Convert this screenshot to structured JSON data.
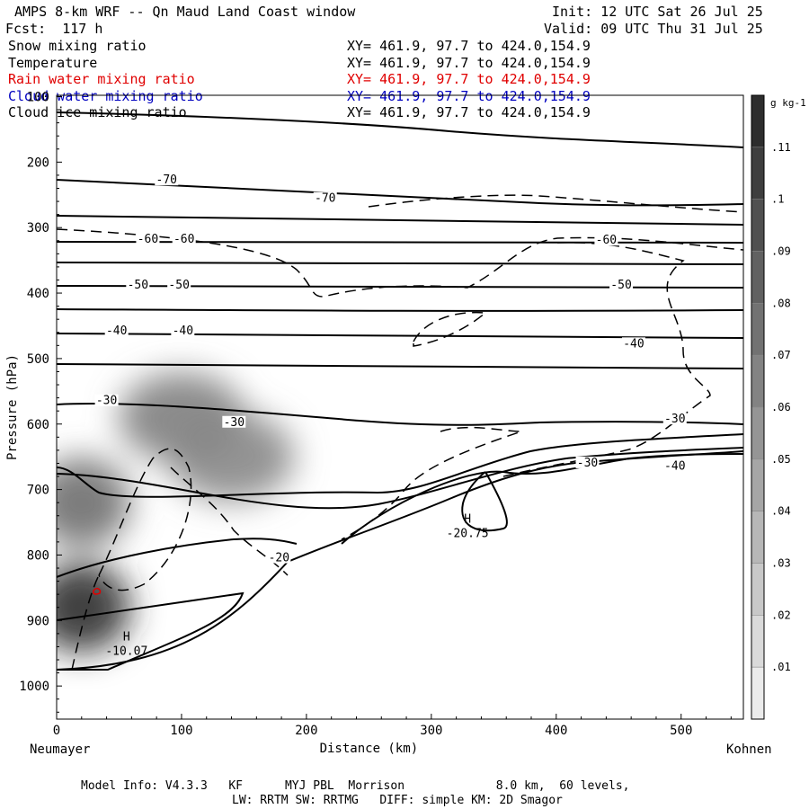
{
  "header": {
    "title": "AMPS 8-km WRF -- Qn Maud Land Coast window",
    "init": "Init: 12 UTC Sat 26 Jul 25",
    "fcst": "Fcst:  117 h",
    "valid": "Valid: 09 UTC Thu 31 Jul 25"
  },
  "fields": [
    {
      "name": "Snow mixing ratio",
      "xy": "XY= 461.9, 97.7 to 424.0,154.9",
      "color": "#000000"
    },
    {
      "name": "Temperature",
      "xy": "XY= 461.9, 97.7 to 424.0,154.9",
      "color": "#000000"
    },
    {
      "name": "Rain water mixing ratio",
      "xy": "XY= 461.9, 97.7 to 424.0,154.9",
      "color": "#e00000"
    },
    {
      "name": "Cloud water mixing ratio",
      "xy": "XY= 461.9, 97.7 to 424.0,154.9",
      "color": "#0000c0"
    },
    {
      "name": "Cloud ice mixing ratio",
      "xy": "XY= 461.9, 97.7 to 424.0,154.9",
      "color": "#000000"
    }
  ],
  "footer": {
    "line1": "Model Info: V4.3.3   KF      MYJ PBL  Morrison             8.0 km,  60 levels,",
    "line2": "LW: RRTM SW: RRTMG   DIFF: simple KM: 2D Smagor"
  },
  "chart_data": {
    "type": "heatmap",
    "ylabel": "Pressure (hPa)",
    "xlabel": "Distance (km)",
    "x_start_label": "Neumayer",
    "x_end_label": "Kohnen",
    "xlim": [
      0,
      550
    ],
    "ylim": [
      1050,
      100
    ],
    "xticks": [
      0,
      100,
      200,
      300,
      400,
      500
    ],
    "yticks": [
      100,
      200,
      300,
      400,
      500,
      600,
      700,
      800,
      900,
      1000
    ],
    "colorbar": {
      "unit": "g kg-1",
      "ticks": [
        ".01",
        ".02",
        ".03",
        ".04",
        ".05",
        ".06",
        ".07",
        ".08",
        ".09",
        ".1",
        ".11"
      ],
      "range": [
        0.005,
        0.12
      ]
    },
    "snow_blobs": [
      {
        "x": 20,
        "p": 880,
        "max": 0.12
      },
      {
        "x": 20,
        "p": 720,
        "max": 0.08
      },
      {
        "x": 100,
        "p": 590,
        "max": 0.07
      },
      {
        "x": 140,
        "p": 650,
        "max": 0.065
      }
    ],
    "temperature_labels": [
      {
        "text": "-70",
        "x": 88,
        "p": 230
      },
      {
        "text": "-70",
        "x": 215,
        "p": 258
      },
      {
        "text": "-60",
        "x": 73,
        "p": 320
      },
      {
        "text": "-60",
        "x": 102,
        "p": 320
      },
      {
        "text": "-60",
        "x": 440,
        "p": 322
      },
      {
        "text": "-50",
        "x": 65,
        "p": 390
      },
      {
        "text": "-50",
        "x": 98,
        "p": 390
      },
      {
        "text": "-50",
        "x": 452,
        "p": 390
      },
      {
        "text": "-40",
        "x": 48,
        "p": 460
      },
      {
        "text": "-40",
        "x": 101,
        "p": 460
      },
      {
        "text": "-40",
        "x": 462,
        "p": 480
      },
      {
        "text": "-30",
        "x": 40,
        "p": 567
      },
      {
        "text": "-30",
        "x": 142,
        "p": 600
      },
      {
        "text": "-30",
        "x": 495,
        "p": 595
      },
      {
        "text": "-30",
        "x": 425,
        "p": 662
      },
      {
        "text": "-40",
        "x": 495,
        "p": 667
      },
      {
        "text": "-20",
        "x": 178,
        "p": 807
      }
    ],
    "extrema": [
      {
        "symbol": "H",
        "value": "-10.07",
        "x": 56,
        "p": 950
      },
      {
        "symbol": "H",
        "value": "-20.75",
        "x": 329,
        "p": 770
      }
    ]
  }
}
